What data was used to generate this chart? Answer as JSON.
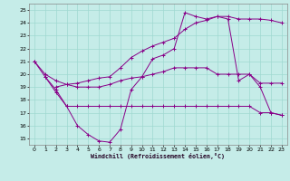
{
  "xlabel": "Windchill (Refroidissement éolien,°C)",
  "bg_color": "#c5ece8",
  "grid_color": "#9fd8d0",
  "line_color": "#880088",
  "xlim": [
    -0.5,
    23.5
  ],
  "ylim": [
    14.5,
    25.5
  ],
  "xticks": [
    0,
    1,
    2,
    3,
    4,
    5,
    6,
    7,
    8,
    9,
    10,
    11,
    12,
    13,
    14,
    15,
    16,
    17,
    18,
    19,
    20,
    21,
    22,
    23
  ],
  "yticks": [
    15,
    16,
    17,
    18,
    19,
    20,
    21,
    22,
    23,
    24,
    25
  ],
  "line1_x": [
    0,
    1,
    2,
    3,
    4,
    5,
    6,
    7,
    8,
    9,
    10,
    11,
    12,
    13,
    14,
    15,
    16,
    17,
    18,
    19,
    20,
    21,
    22,
    23
  ],
  "line1_y": [
    21.0,
    19.8,
    18.6,
    17.5,
    16.0,
    15.3,
    14.8,
    14.7,
    15.7,
    18.8,
    19.8,
    21.2,
    21.5,
    22.0,
    24.8,
    24.5,
    24.3,
    24.5,
    24.3,
    19.5,
    20.0,
    19.0,
    17.0,
    16.8
  ],
  "line2_x": [
    1,
    2,
    3,
    4,
    5,
    6,
    7,
    8,
    9,
    10,
    11,
    12,
    13,
    14,
    15,
    16,
    17,
    18,
    19,
    20,
    21,
    22,
    23
  ],
  "line2_y": [
    19.8,
    18.8,
    17.5,
    17.5,
    17.5,
    17.5,
    17.5,
    17.5,
    17.5,
    17.5,
    17.5,
    17.5,
    17.5,
    17.5,
    17.5,
    17.5,
    17.5,
    17.5,
    17.5,
    17.5,
    17.0,
    17.0,
    16.8
  ],
  "line3_x": [
    0,
    1,
    2,
    3,
    4,
    5,
    6,
    7,
    8,
    9,
    10,
    11,
    12,
    13,
    14,
    15,
    16,
    17,
    18,
    19,
    20,
    21,
    22,
    23
  ],
  "line3_y": [
    21.0,
    20.0,
    19.5,
    19.2,
    19.0,
    19.0,
    19.0,
    19.2,
    19.5,
    19.7,
    19.8,
    20.0,
    20.2,
    20.5,
    20.5,
    20.5,
    20.5,
    20.0,
    20.0,
    20.0,
    20.0,
    19.3,
    19.3,
    19.3
  ],
  "line4_x": [
    2,
    3,
    4,
    5,
    6,
    7,
    8,
    9,
    10,
    11,
    12,
    13,
    14,
    15,
    16,
    17,
    18,
    19,
    20,
    21,
    22,
    23
  ],
  "line4_y": [
    19.0,
    19.2,
    19.3,
    19.5,
    19.7,
    19.8,
    20.5,
    21.3,
    21.8,
    22.2,
    22.5,
    22.8,
    23.5,
    24.0,
    24.2,
    24.5,
    24.5,
    24.3,
    24.3,
    24.3,
    24.2,
    24.0
  ]
}
